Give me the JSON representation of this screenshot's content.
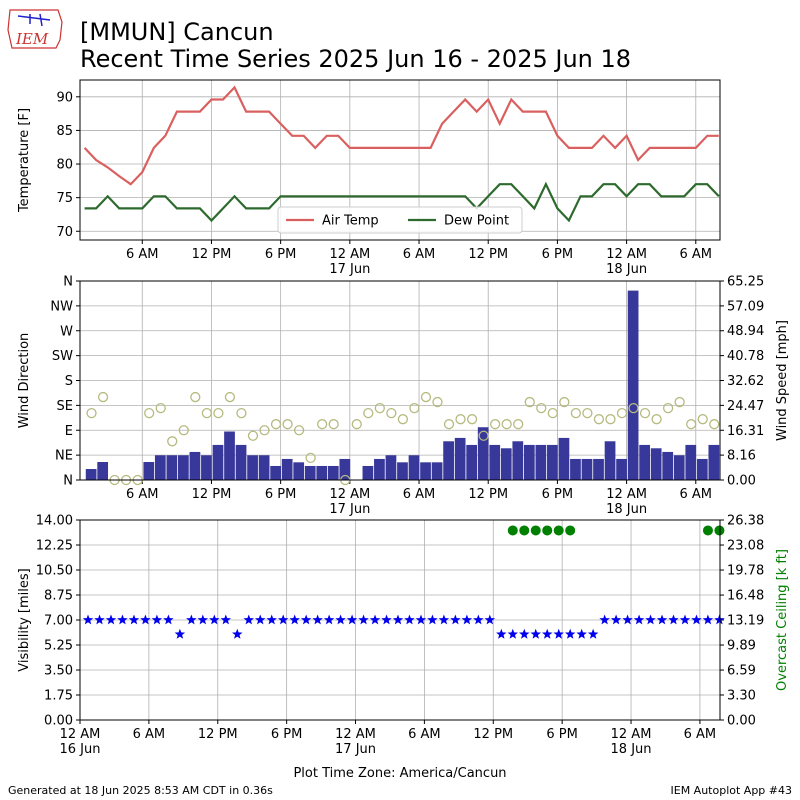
{
  "header": {
    "logo_text": "IEM",
    "title": "[MMUN] Cancun",
    "subtitle": "Recent Time Series 2025 Jun 16 - 2025 Jun 18"
  },
  "footer": {
    "left": "Generated at 18 Jun 2025 8:53 AM CDT in 0.36s",
    "right": "IEM Autoplot App #43"
  },
  "chart_data": [
    {
      "type": "line",
      "ylabel": "Temperature [F]",
      "grid": true,
      "legend": "lower center",
      "xlim": [
        0.6,
        56.1
      ],
      "ylim": [
        68.7,
        92.5
      ],
      "yticks": [
        70,
        75,
        80,
        85,
        90
      ],
      "xticks": [
        {
          "value": 6,
          "label": "6 AM"
        },
        {
          "value": 12,
          "label": "12 PM"
        },
        {
          "value": 18,
          "label": "6 PM"
        },
        {
          "value": 24,
          "label": "12 AM\n17 Jun"
        },
        {
          "value": 30,
          "label": "6 AM"
        },
        {
          "value": 36,
          "label": "12 PM"
        },
        {
          "value": 42,
          "label": "6 PM"
        },
        {
          "value": 48,
          "label": "12 AM\n18 Jun"
        },
        {
          "value": 54,
          "label": "6 AM"
        }
      ],
      "x": [
        1,
        2,
        3,
        4,
        5,
        6,
        7,
        8,
        9,
        10,
        11,
        12,
        13,
        14,
        15,
        16,
        17,
        18,
        19,
        20,
        21,
        22,
        23,
        24,
        25,
        26,
        27,
        28,
        29,
        30,
        31,
        32,
        33,
        34,
        35,
        36,
        37,
        38,
        39,
        40,
        41,
        42,
        43,
        44,
        45,
        46,
        47,
        48,
        49,
        50,
        51,
        52,
        53,
        54,
        55,
        56
      ],
      "series": [
        {
          "name": "Air Temp",
          "color": "#d9605f",
          "values": [
            82.4,
            80.6,
            79.5,
            78.2,
            77,
            78.8,
            82.4,
            84.2,
            87.8,
            87.8,
            87.8,
            89.6,
            89.6,
            91.4,
            87.8,
            87.8,
            87.8,
            86,
            84.2,
            84.2,
            82.4,
            84.2,
            84.2,
            82.4,
            82.4,
            82.4,
            82.4,
            82.4,
            82.4,
            82.4,
            82.4,
            86,
            87.8,
            89.6,
            87.8,
            89.6,
            86,
            89.6,
            87.8,
            87.8,
            87.8,
            84.2,
            82.4,
            82.4,
            82.4,
            84.2,
            82.4,
            84.2,
            80.6,
            82.4,
            82.4,
            82.4,
            82.4,
            82.4,
            84.2,
            84.2
          ]
        },
        {
          "name": "Dew Point",
          "color": "#2d6a2d",
          "values": [
            73.4,
            73.4,
            75.2,
            73.4,
            73.4,
            73.4,
            75.2,
            75.2,
            73.4,
            73.4,
            73.4,
            71.6,
            73.4,
            75.2,
            73.4,
            73.4,
            73.4,
            75.2,
            75.2,
            75.2,
            75.2,
            75.2,
            75.2,
            75.2,
            75.2,
            75.2,
            75.2,
            75.2,
            75.2,
            75.2,
            75.2,
            75.2,
            75.2,
            75.2,
            73.4,
            75.2,
            77,
            77,
            75.2,
            73.4,
            77,
            73.4,
            71.6,
            75.2,
            75.2,
            77,
            77,
            75.2,
            77,
            77,
            75.2,
            75.2,
            75.2,
            77,
            77,
            75.2
          ]
        }
      ]
    },
    {
      "type": "bar",
      "ylabel": "Wind Direction",
      "y2label": "Wind Speed [mph]",
      "grid": true,
      "xlim": [
        0.6,
        56.1
      ],
      "ylim": [
        0,
        360
      ],
      "y2lim": [
        0,
        65.25
      ],
      "yticks": [
        {
          "value": 0,
          "label": "N"
        },
        {
          "value": 45,
          "label": "NE"
        },
        {
          "value": 90,
          "label": "E"
        },
        {
          "value": 135,
          "label": "SE"
        },
        {
          "value": 180,
          "label": "S"
        },
        {
          "value": 225,
          "label": "SW"
        },
        {
          "value": 270,
          "label": "W"
        },
        {
          "value": 315,
          "label": "NW"
        },
        {
          "value": 360,
          "label": "N"
        }
      ],
      "y2ticks": [
        {
          "value": 0,
          "label": "0.00"
        },
        8.16,
        16.31,
        24.47,
        32.62,
        40.78,
        48.94,
        57.09,
        65.25
      ],
      "xticks": [
        {
          "value": 6,
          "label": "6 AM"
        },
        {
          "value": 12,
          "label": "12 PM"
        },
        {
          "value": 18,
          "label": "6 PM"
        },
        {
          "value": 24,
          "label": "12 AM\n17 Jun"
        },
        {
          "value": 30,
          "label": "6 AM"
        },
        {
          "value": 36,
          "label": "12 PM"
        },
        {
          "value": 42,
          "label": "6 PM"
        },
        {
          "value": 48,
          "label": "12 AM\n18 Jun"
        },
        {
          "value": 54,
          "label": "6 AM"
        }
      ],
      "x": [
        1.6,
        2.6,
        3.6,
        4.6,
        5.6,
        6.6,
        7.6,
        8.6,
        9.6,
        10.6,
        11.6,
        12.6,
        13.6,
        14.6,
        15.6,
        16.6,
        17.6,
        18.6,
        19.6,
        20.6,
        21.6,
        22.6,
        23.6,
        24.6,
        25.6,
        26.6,
        27.6,
        28.6,
        29.6,
        30.6,
        31.6,
        32.6,
        33.6,
        34.6,
        35.6,
        36.6,
        37.6,
        38.6,
        39.6,
        40.6,
        41.6,
        42.6,
        43.6,
        44.6,
        45.6,
        46.6,
        47.6,
        48.6,
        49.6,
        50.6,
        51.6,
        52.6,
        53.6,
        54.6,
        55.6
      ],
      "series": [
        {
          "type": "bar",
          "axis": "y2",
          "color": "#38389a",
          "values": [
            3.6,
            5.9,
            0,
            0,
            0,
            5.9,
            8.1,
            8.1,
            8.1,
            9.2,
            8.1,
            11.5,
            15.9,
            11.5,
            8.1,
            8.1,
            4.6,
            6.9,
            5.8,
            4.6,
            4.6,
            4.6,
            6.9,
            0,
            4.6,
            6.9,
            8.1,
            5.8,
            8.1,
            5.8,
            5.8,
            12.7,
            13.8,
            11.5,
            17.3,
            11.5,
            10.4,
            12.7,
            11.5,
            11.5,
            11.5,
            13.8,
            6.9,
            6.9,
            6.9,
            12.7,
            6.9,
            62.1,
            11.5,
            10.4,
            9.2,
            8.1,
            11.5,
            6.9,
            11.5
          ]
        },
        {
          "type": "scatter",
          "axis": "y",
          "marker": "open-circle",
          "color": "#b6ba7f",
          "values": [
            121,
            150,
            0,
            0,
            0,
            121,
            130,
            70,
            90,
            150,
            121,
            121,
            150,
            121,
            80,
            90,
            101,
            101,
            90,
            40,
            101,
            101,
            0,
            101,
            121,
            130,
            121,
            110,
            130,
            150,
            141,
            101,
            110,
            110,
            80,
            101,
            101,
            101,
            141,
            130,
            121,
            141,
            121,
            121,
            110,
            110,
            121,
            130,
            121,
            110,
            130,
            141,
            101,
            110,
            101
          ]
        }
      ]
    },
    {
      "type": "scatter",
      "ylabel": "Visibility [miles]",
      "y2label": "Overcast Ceiling [k ft]",
      "y2label_color": "#008000",
      "xlabel": "Plot Time Zone: America/Cancun",
      "grid": true,
      "xlim": [
        0,
        55.75
      ],
      "ylim": [
        0,
        14
      ],
      "y2lim": [
        0,
        26.38
      ],
      "yticks": [
        {
          "value": 0,
          "label": "0.00"
        },
        1.75,
        {
          "value": 3.5,
          "label": "3.50"
        },
        5.25,
        {
          "value": 7,
          "label": "7.00"
        },
        8.75,
        {
          "value": 10.5,
          "label": "10.50"
        },
        12.25,
        {
          "value": 14,
          "label": "14.00"
        }
      ],
      "y2ticks": [
        {
          "value": 0,
          "label": "0.00"
        },
        {
          "value": 3.3,
          "label": "3.30"
        },
        6.59,
        9.89,
        13.19,
        16.48,
        19.78,
        23.08,
        26.38
      ],
      "xticks": [
        {
          "value": 0,
          "label": "12 AM\n16 Jun"
        },
        {
          "value": 6,
          "label": "6 AM"
        },
        {
          "value": 12,
          "label": "12 PM"
        },
        {
          "value": 18,
          "label": "6 PM"
        },
        {
          "value": 24,
          "label": "12 AM\n17 Jun"
        },
        {
          "value": 30,
          "label": "6 AM"
        },
        {
          "value": 36,
          "label": "12 PM"
        },
        {
          "value": 42,
          "label": "6 PM"
        },
        {
          "value": 48,
          "label": "12 AM\n18 Jun"
        },
        {
          "value": 54,
          "label": "6 AM"
        }
      ],
      "x": [
        0.7,
        1.7,
        2.7,
        3.7,
        4.7,
        5.7,
        6.7,
        7.7,
        8.7,
        9.7,
        10.7,
        11.7,
        12.7,
        13.7,
        14.7,
        15.7,
        16.7,
        17.7,
        18.7,
        19.7,
        20.7,
        21.7,
        22.7,
        23.7,
        24.7,
        25.7,
        26.7,
        27.7,
        28.7,
        29.7,
        30.7,
        31.7,
        32.7,
        33.7,
        34.7,
        35.7,
        36.7,
        37.7,
        38.7,
        39.7,
        40.7,
        41.7,
        42.7,
        43.7,
        44.7,
        45.7,
        46.7,
        47.7,
        48.7,
        49.7,
        50.7,
        51.7,
        52.7,
        53.7,
        54.7,
        55.7
      ],
      "series": [
        {
          "axis": "y",
          "marker": "star",
          "color": "#0000ee",
          "values": [
            7,
            7,
            7,
            7,
            7,
            7,
            7,
            7,
            6,
            7,
            7,
            7,
            7,
            6,
            7,
            7,
            7,
            7,
            7,
            7,
            7,
            7,
            7,
            7,
            7,
            7,
            7,
            7,
            7,
            7,
            7,
            7,
            7,
            7,
            7,
            7,
            6,
            6,
            6,
            6,
            6,
            6,
            6,
            6,
            6,
            7,
            7,
            7,
            7,
            7,
            7,
            7,
            7,
            7,
            7,
            7
          ]
        },
        {
          "axis": "y2",
          "marker": "circle",
          "color": "#008000",
          "values": [
            null,
            null,
            null,
            null,
            null,
            null,
            null,
            null,
            null,
            null,
            null,
            null,
            null,
            null,
            null,
            null,
            null,
            null,
            null,
            null,
            null,
            null,
            null,
            null,
            null,
            null,
            null,
            null,
            null,
            null,
            null,
            null,
            null,
            null,
            null,
            null,
            null,
            25,
            25,
            25,
            25,
            25,
            25,
            null,
            null,
            null,
            null,
            null,
            null,
            null,
            null,
            null,
            null,
            null,
            25,
            25
          ]
        }
      ]
    }
  ]
}
